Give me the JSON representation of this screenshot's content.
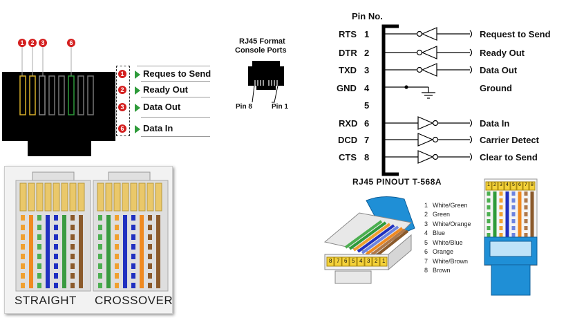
{
  "left_legend": {
    "markers": [
      "1",
      "2",
      "3",
      "6"
    ],
    "items": [
      {
        "num": "1",
        "label": "Reques to Send"
      },
      {
        "num": "2",
        "label": "Ready Out"
      },
      {
        "num": "3",
        "label": "Data Out"
      },
      {
        "num": "6",
        "label": "Data In"
      }
    ]
  },
  "cable_captions": {
    "straight": "STRAIGHT",
    "crossover": "CROSSOVER"
  },
  "console": {
    "title_line1": "RJ45 Format",
    "title_line2": "Console Ports",
    "pin8": "Pin 8",
    "pin1": "Pin 1"
  },
  "pinout": {
    "header": "Pin No.",
    "rows": [
      {
        "sig": "RTS",
        "num": "1",
        "desc": "Request to Send",
        "dir": "out"
      },
      {
        "sig": "DTR",
        "num": "2",
        "desc": "Ready Out",
        "dir": "out"
      },
      {
        "sig": "TXD",
        "num": "3",
        "desc": "Data Out",
        "dir": "out"
      },
      {
        "sig": "GND",
        "num": "4",
        "desc": "Ground",
        "dir": "gnd"
      },
      {
        "sig": "",
        "num": "5",
        "desc": "",
        "dir": "none"
      },
      {
        "sig": "RXD",
        "num": "6",
        "desc": "Data In",
        "dir": "in"
      },
      {
        "sig": "DCD",
        "num": "7",
        "desc": "Carrier Detect",
        "dir": "in"
      },
      {
        "sig": "CTS",
        "num": "8",
        "desc": "Clear to Send",
        "dir": "in"
      }
    ],
    "title": "RJ45 PINOUT  T-568A"
  },
  "wire_colors": [
    {
      "num": "1",
      "name": "White/Green"
    },
    {
      "num": "2",
      "name": "Green"
    },
    {
      "num": "3",
      "name": "White/Orange"
    },
    {
      "num": "4",
      "name": "Blue"
    },
    {
      "num": "5",
      "name": "White/Blue"
    },
    {
      "num": "6",
      "name": "Orange"
    },
    {
      "num": "7",
      "name": "White/Brown"
    },
    {
      "num": "8",
      "name": "Brown"
    }
  ],
  "plug_pins_desc": [
    "8",
    "7",
    "6",
    "5",
    "4",
    "3",
    "2",
    "1"
  ],
  "plug_pins_asc": [
    "1",
    "2",
    "3",
    "4",
    "5",
    "6",
    "7",
    "8"
  ],
  "colors": {
    "marker_red": "#d42020",
    "arrow_green": "#2e9b3a",
    "plug_blue": "#1f8fd6"
  }
}
